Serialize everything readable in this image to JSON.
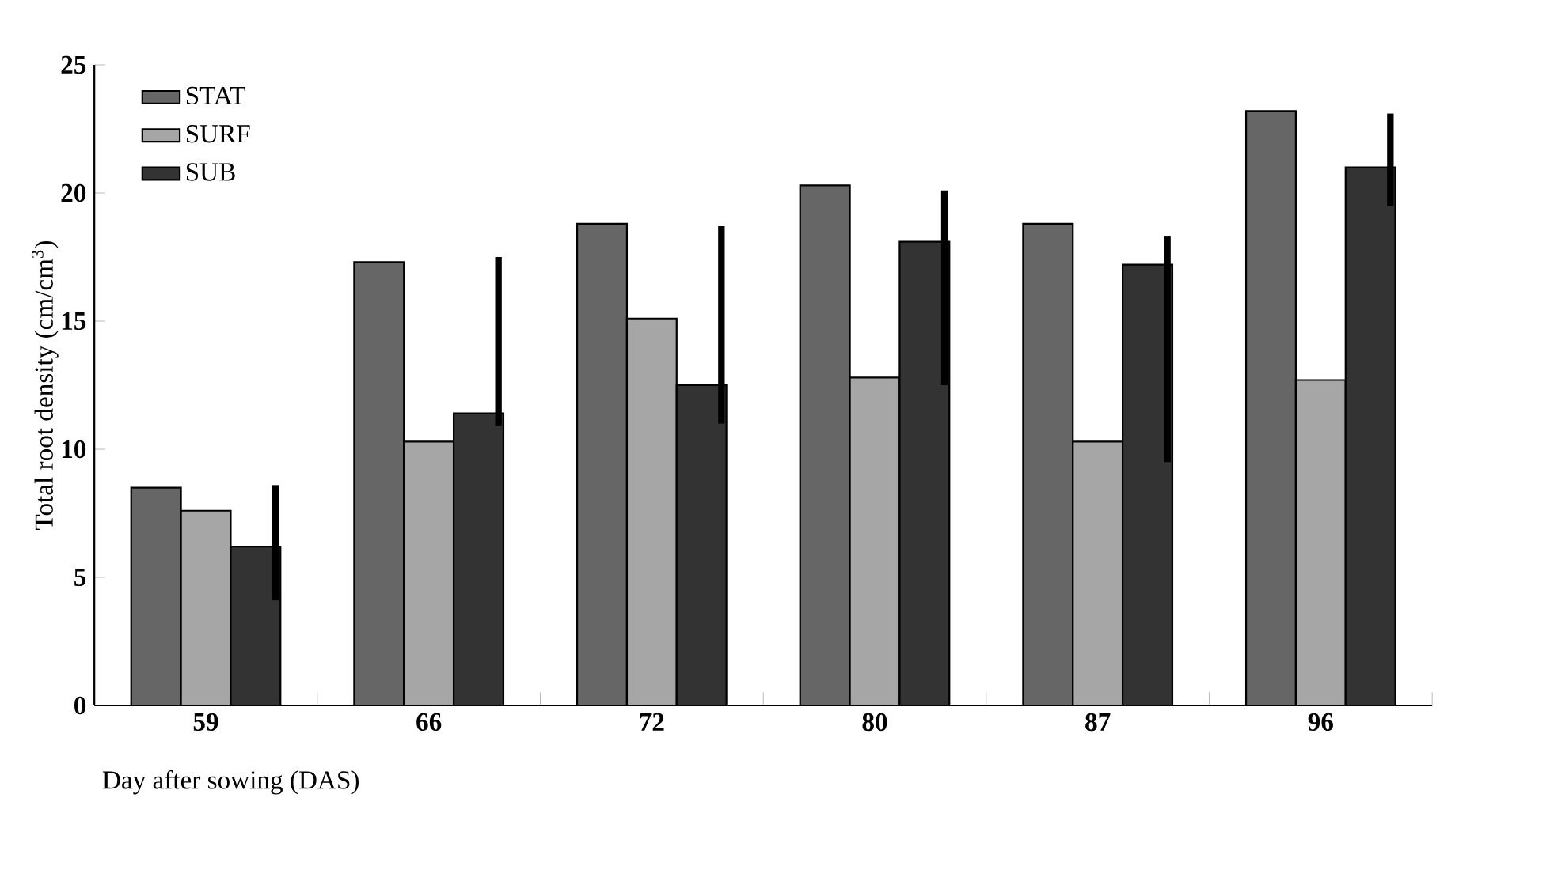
{
  "chart_data": {
    "type": "bar",
    "xlabel": "Day after sowing (DAS)",
    "ylabel": "Total root density (cm/cm$^{3}$)",
    "categories": [
      "59",
      "66",
      "72",
      "80",
      "87",
      "96"
    ],
    "series": [
      {
        "name": "STAT",
        "color": "#666666",
        "values": [
          8.5,
          17.3,
          18.8,
          20.3,
          18.8,
          23.2
        ]
      },
      {
        "name": "SURF",
        "color": "#a6a6a6",
        "values": [
          7.6,
          10.3,
          15.1,
          12.8,
          10.3,
          12.7
        ]
      },
      {
        "name": "SUB",
        "color": "#333333",
        "values": [
          6.2,
          11.4,
          12.5,
          18.1,
          17.2,
          21.0
        ],
        "errors": [
          [
            4.1,
            8.6
          ],
          [
            10.9,
            17.5
          ],
          [
            11.0,
            18.7
          ],
          [
            12.5,
            20.1
          ],
          [
            9.5,
            18.3
          ],
          [
            19.5,
            23.1
          ]
        ]
      }
    ],
    "ylim": [
      0,
      25
    ],
    "yticks": [
      0,
      5,
      10,
      15,
      20,
      25
    ],
    "legend": "top left"
  }
}
